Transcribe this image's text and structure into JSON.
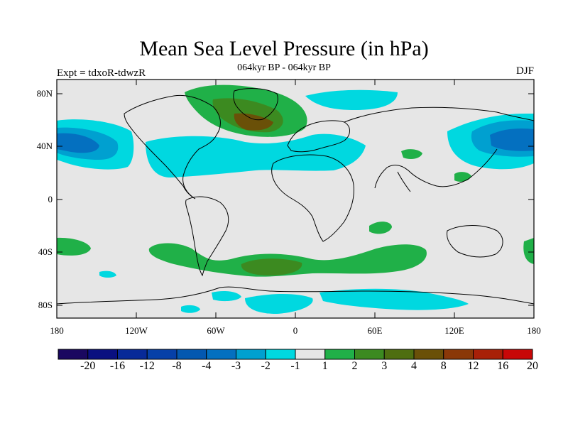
{
  "title": "Mean Sea Level Pressure (in hPa)",
  "subtitle": "064kyr BP - 064kyr BP",
  "left_label": "Expt = tdxoR-tdwzR",
  "right_label": "DJF",
  "lat_ticks": [
    "80N",
    "40N",
    "0",
    "40S",
    "80S"
  ],
  "lon_ticks": [
    "180",
    "120W",
    "60W",
    "0",
    "60E",
    "120E",
    "180"
  ],
  "colorbar": {
    "labels": [
      "-20",
      "-16",
      "-12",
      "-8",
      "-4",
      "-3",
      "-2",
      "-1",
      "1",
      "2",
      "3",
      "4",
      "8",
      "12",
      "16",
      "20"
    ],
    "colors": [
      "#1a0860",
      "#0a1080",
      "#082a98",
      "#0640a8",
      "#0458b0",
      "#0470c0",
      "#00a0d0",
      "#00d8e0",
      "#e6e6e6",
      "#20b048",
      "#3c8a20",
      "#4e6e10",
      "#6a5008",
      "#8a3808",
      "#a82008",
      "#c80808"
    ]
  },
  "colors": {
    "background": "#e6e6e6",
    "neg1": "#00d8e0",
    "neg2": "#00a0d0",
    "neg3": "#0470c0",
    "pos1": "#20b048",
    "pos2": "#3c8a20",
    "pos4": "#6a5008"
  }
}
